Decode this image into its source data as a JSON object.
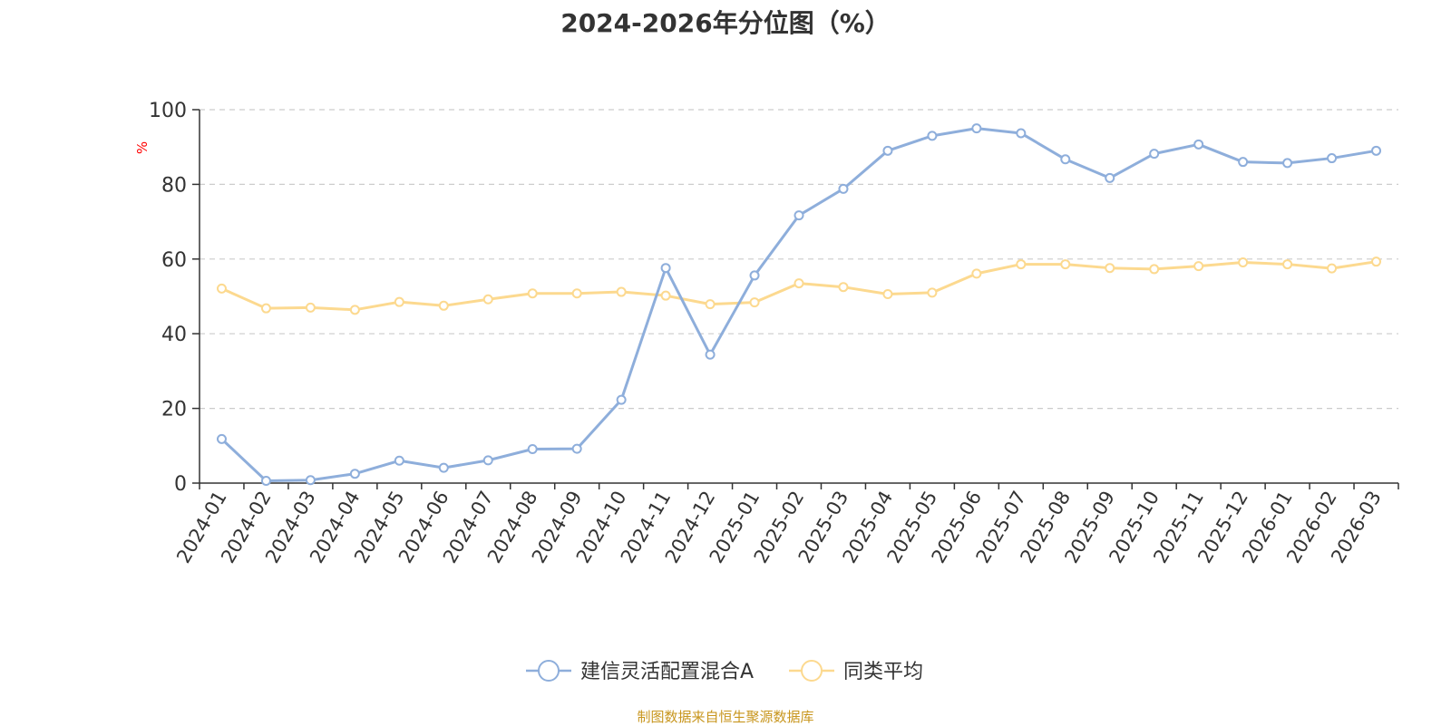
{
  "chart_data": {
    "type": "line",
    "title": "2024-2026年分位图（%）",
    "ylabel": "%",
    "xlabel": "",
    "ylim": [
      0,
      100
    ],
    "yticks": [
      0,
      20,
      40,
      60,
      80,
      100
    ],
    "grid": "horizontal-dashed",
    "legend_position": "bottom-center",
    "categories": [
      "2024-01",
      "2024-02",
      "2024-03",
      "2024-04",
      "2024-05",
      "2024-06",
      "2024-07",
      "2024-08",
      "2024-09",
      "2024-10",
      "2024-11",
      "2024-12",
      "2025-01",
      "2025-02",
      "2025-03",
      "2025-04",
      "2025-05",
      "2025-06",
      "2025-07",
      "2025-08",
      "2025-09",
      "2025-10",
      "2025-11",
      "2025-12",
      "2026-01",
      "2026-02",
      "2026-03"
    ],
    "series": [
      {
        "name": "建信灵活配置混合A",
        "color": "#8eaedb",
        "values": [
          11.8,
          0.6,
          0.8,
          2.5,
          6.0,
          4.1,
          6.1,
          9.1,
          9.2,
          22.3,
          57.6,
          34.4,
          55.6,
          71.7,
          78.8,
          89.0,
          93.0,
          95.0,
          93.7,
          86.7,
          81.7,
          88.2,
          90.7,
          86.0,
          85.7,
          87.0,
          89.0
        ]
      },
      {
        "name": "同类平均",
        "color": "#fcd98f",
        "values": [
          52.1,
          46.8,
          47.0,
          46.4,
          48.5,
          47.5,
          49.2,
          50.8,
          50.8,
          51.2,
          50.2,
          47.9,
          48.4,
          53.5,
          52.5,
          50.6,
          51.0,
          56.1,
          58.6,
          58.6,
          57.6,
          57.3,
          58.1,
          59.1,
          58.6,
          57.5,
          59.3
        ]
      }
    ]
  },
  "footer": {
    "source_note": "制图数据来自恒生聚源数据库"
  },
  "colors": {
    "axis": "#333333",
    "grid": "#cccccc",
    "ylabel": "#ff0000",
    "source": "#c8961e"
  }
}
